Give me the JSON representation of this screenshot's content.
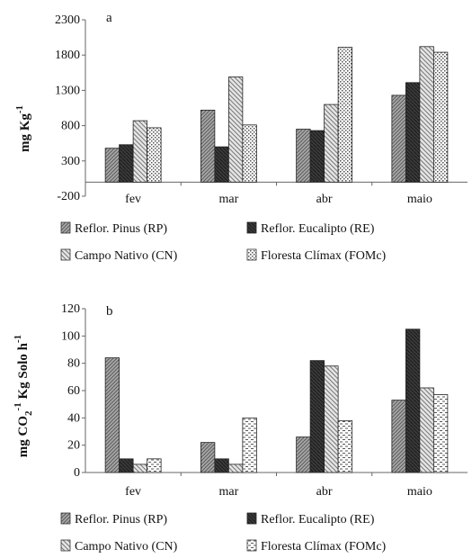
{
  "chart_data": [
    {
      "type": "bar",
      "panel_label": "a",
      "ylabel_main": "mg Kg",
      "ylabel_sup": "-1",
      "categories": [
        "fev",
        "mar",
        "abr",
        "maio"
      ],
      "ylim": [
        -200,
        2300
      ],
      "yticks": [
        "-200",
        "300",
        "800",
        "1300",
        "1800",
        "2300"
      ],
      "series": [
        {
          "name": "Reflor. Pinus (RP)",
          "values": [
            480,
            1020,
            750,
            1230
          ],
          "pattern": "diag-fine"
        },
        {
          "name": "Reflor. Eucalipto (RE)",
          "values": [
            530,
            500,
            730,
            1410
          ],
          "pattern": "dark"
        },
        {
          "name": "Campo Nativo (CN)",
          "values": [
            870,
            1490,
            1100,
            1920
          ],
          "pattern": "diag-wide"
        },
        {
          "name": "Floresta Clímax (FOMc)",
          "values": [
            770,
            810,
            1910,
            1840
          ],
          "pattern": "dots"
        }
      ],
      "legend_position": "bottom"
    },
    {
      "type": "bar",
      "panel_label": "b",
      "ylabel_a": "mg CO",
      "ylabel_sub": "2",
      "ylabel_sup1": "-1",
      "ylabel_b": " Kg Solo h",
      "ylabel_sup2": "-1",
      "categories": [
        "fev",
        "mar",
        "abr",
        "maio"
      ],
      "ylim": [
        0,
        120
      ],
      "yticks": [
        "0",
        "20",
        "40",
        "60",
        "80",
        "100",
        "120"
      ],
      "series": [
        {
          "name": "Reflor. Pinus (RP)",
          "values": [
            84,
            22,
            26,
            53
          ],
          "pattern": "diag-fine"
        },
        {
          "name": "Reflor. Eucalipto (RE)",
          "values": [
            10,
            10,
            82,
            105
          ],
          "pattern": "dark"
        },
        {
          "name": "Campo Nativo (CN)",
          "values": [
            6,
            6,
            78,
            62
          ],
          "pattern": "diag-wide"
        },
        {
          "name": "Floresta Clímax (FOMc)",
          "values": [
            10,
            40,
            38,
            57
          ],
          "pattern": "dashes"
        }
      ],
      "legend_position": "bottom"
    }
  ]
}
